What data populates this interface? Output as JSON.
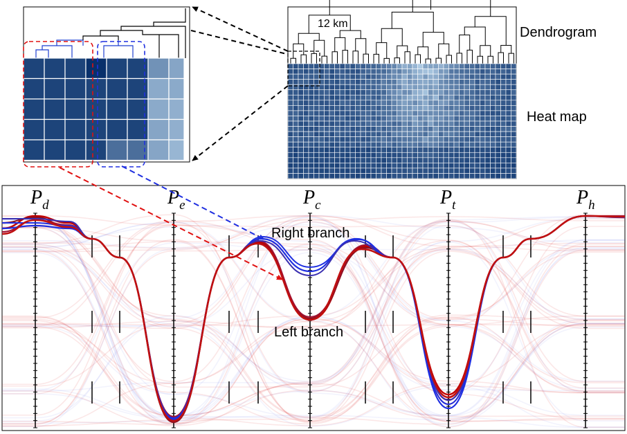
{
  "annotations": {
    "scale_label": "12 km",
    "dendrogram_label": "Dendrogram",
    "heatmap_label": "Heat map",
    "right_branch_label": "Right branch",
    "left_branch_label": "Left branch"
  },
  "axes": [
    {
      "base": "P",
      "sub": "d"
    },
    {
      "base": "P",
      "sub": "e"
    },
    {
      "base": "P",
      "sub": "c"
    },
    {
      "base": "P",
      "sub": "t"
    },
    {
      "base": "P",
      "sub": "h"
    }
  ],
  "colors": {
    "left_branch": "#c00000",
    "right_branch": "#1f2fe0",
    "heatmap_dark": "#08306b",
    "heatmap_mid": "#2e6eb0",
    "heatmap_light": "#b7d3ea",
    "dendrogram": "#000000",
    "dendrogram_highlight": "#1f3fd0"
  }
}
